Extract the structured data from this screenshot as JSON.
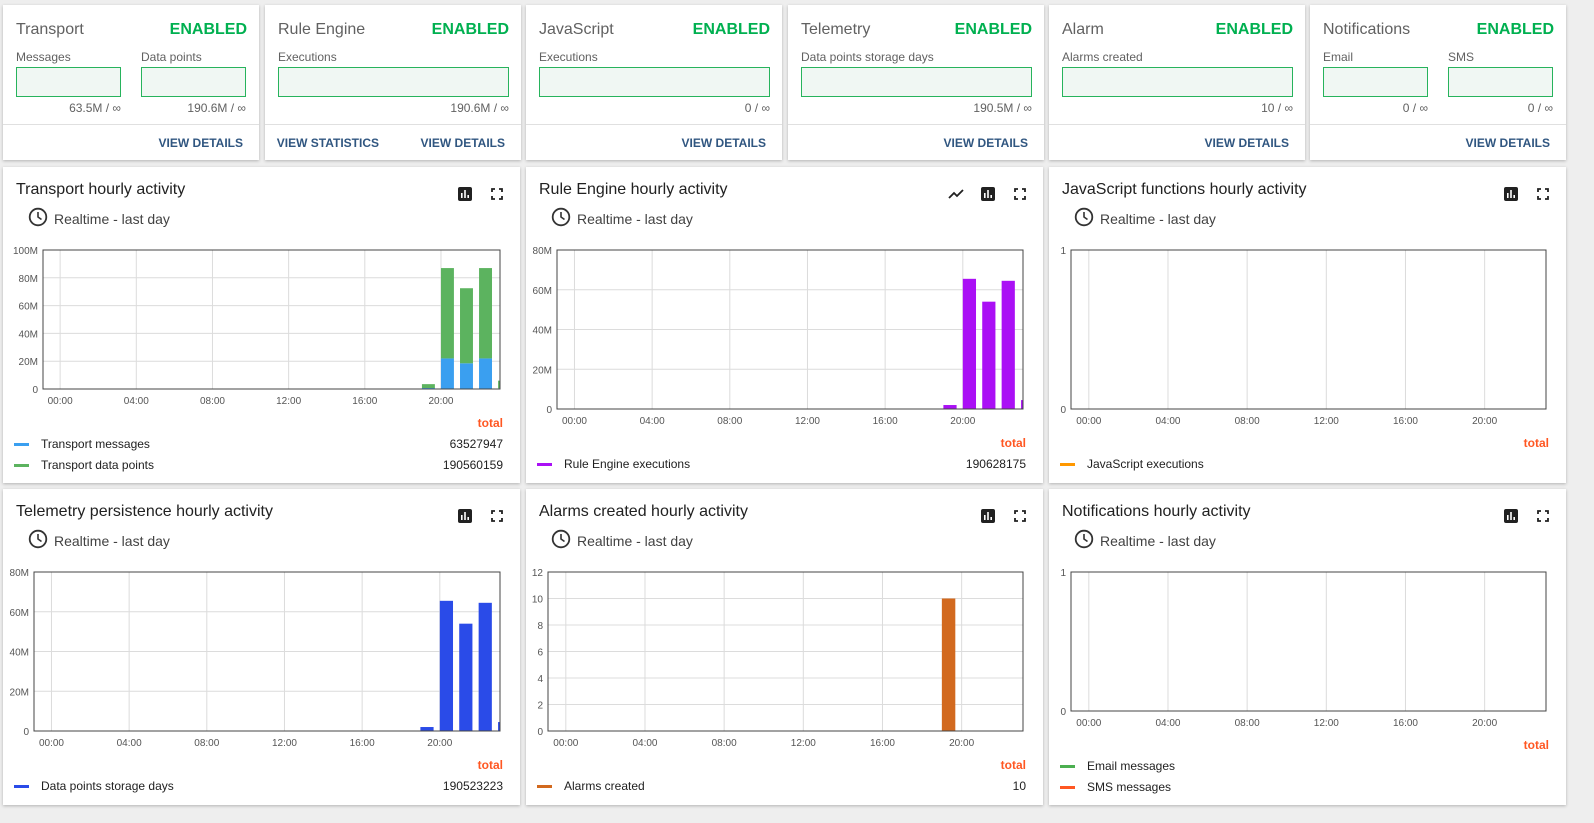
{
  "summary_cards": [
    {
      "title": "Transport",
      "status": "ENABLED",
      "metrics": [
        {
          "label": "Messages",
          "value": "63.5M / ∞",
          "fraction": 0
        },
        {
          "label": "Data points",
          "value": "190.6M / ∞",
          "fraction": 0
        }
      ],
      "buttons": [
        "VIEW DETAILS"
      ]
    },
    {
      "title": "Rule Engine",
      "status": "ENABLED",
      "metrics": [
        {
          "label": "Executions",
          "value": "190.6M / ∞",
          "fraction": 0
        }
      ],
      "buttons": [
        "VIEW STATISTICS",
        "VIEW DETAILS"
      ]
    },
    {
      "title": "JavaScript",
      "status": "ENABLED",
      "metrics": [
        {
          "label": "Executions",
          "value": "0 / ∞",
          "fraction": 0
        }
      ],
      "buttons": [
        "VIEW DETAILS"
      ]
    },
    {
      "title": "Telemetry",
      "status": "ENABLED",
      "metrics": [
        {
          "label": "Data points storage days",
          "value": "190.5M / ∞",
          "fraction": 0
        }
      ],
      "buttons": [
        "VIEW DETAILS"
      ]
    },
    {
      "title": "Alarm",
      "status": "ENABLED",
      "metrics": [
        {
          "label": "Alarms created",
          "value": "10 / ∞",
          "fraction": 0
        }
      ],
      "buttons": [
        "VIEW DETAILS"
      ]
    },
    {
      "title": "Notifications",
      "status": "ENABLED",
      "metrics": [
        {
          "label": "Email",
          "value": "0 / ∞",
          "fraction": 0
        },
        {
          "label": "SMS",
          "value": "0 / ∞",
          "fraction": 0
        }
      ],
      "buttons": [
        "VIEW DETAILS"
      ]
    }
  ],
  "colors": {
    "enabled": "#00b050",
    "total_label": "#ff5722",
    "button": "#305680"
  },
  "chart_data": [
    {
      "type": "bar",
      "stacked": true,
      "title": "Transport hourly activity",
      "timewindow": "Realtime - last day",
      "icons": [
        "bar-chart-icon",
        "fullscreen-icon"
      ],
      "xticks": [
        "00:00",
        "04:00",
        "08:00",
        "12:00",
        "16:00",
        "20:00"
      ],
      "yticks": [
        "0",
        "20M",
        "40M",
        "60M",
        "80M",
        "100M"
      ],
      "ylim": [
        0,
        100000000
      ],
      "grid": true,
      "total_label": "total",
      "x": [
        "19:00",
        "20:00",
        "21:00",
        "22:00",
        "23:00"
      ],
      "series": [
        {
          "name": "Transport messages",
          "color": "#3a9ff0",
          "total": "63527947",
          "values": [
            700000,
            22000000,
            18500000,
            22000000,
            500000
          ]
        },
        {
          "name": "Transport data points",
          "color": "#5cb35f",
          "total": "190560159",
          "values": [
            2800000,
            65000000,
            54000000,
            65000000,
            5500000
          ]
        }
      ]
    },
    {
      "type": "bar",
      "title": "Rule Engine hourly activity",
      "timewindow": "Realtime - last day",
      "icons": [
        "line-chart-icon",
        "bar-chart-icon",
        "fullscreen-icon"
      ],
      "xticks": [
        "00:00",
        "04:00",
        "08:00",
        "12:00",
        "16:00",
        "20:00"
      ],
      "yticks": [
        "0",
        "20M",
        "40M",
        "60M",
        "80M"
      ],
      "ylim": [
        0,
        80000000
      ],
      "grid": true,
      "total_label": "total",
      "x": [
        "19:00",
        "20:00",
        "21:00",
        "22:00",
        "23:00"
      ],
      "series": [
        {
          "name": "Rule Engine executions",
          "color": "#aa10f5",
          "total": "190628175",
          "values": [
            2000000,
            65500000,
            54000000,
            64500000,
            4500000
          ]
        }
      ]
    },
    {
      "type": "bar",
      "title": "JavaScript functions hourly activity",
      "timewindow": "Realtime - last day",
      "icons": [
        "bar-chart-icon",
        "fullscreen-icon"
      ],
      "xticks": [
        "00:00",
        "04:00",
        "08:00",
        "12:00",
        "16:00",
        "20:00"
      ],
      "yticks": [
        "0",
        "1"
      ],
      "ylim": [
        0,
        1
      ],
      "grid": true,
      "total_label": "total",
      "x": [],
      "series": [
        {
          "name": "JavaScript executions",
          "color": "#ff9800",
          "total": "",
          "values": []
        }
      ]
    },
    {
      "type": "bar",
      "title": "Telemetry persistence hourly activity",
      "timewindow": "Realtime - last day",
      "icons": [
        "bar-chart-icon",
        "fullscreen-icon"
      ],
      "xticks": [
        "00:00",
        "04:00",
        "08:00",
        "12:00",
        "16:00",
        "20:00"
      ],
      "yticks": [
        "0",
        "20M",
        "40M",
        "60M",
        "80M"
      ],
      "ylim": [
        0,
        80000000
      ],
      "grid": true,
      "total_label": "total",
      "x": [
        "19:00",
        "20:00",
        "21:00",
        "22:00",
        "23:00"
      ],
      "series": [
        {
          "name": "Data points storage days",
          "color": "#2a4be8",
          "total": "190523223",
          "values": [
            2000000,
            65500000,
            54000000,
            64500000,
            4500000
          ]
        }
      ]
    },
    {
      "type": "bar",
      "title": "Alarms created hourly activity",
      "timewindow": "Realtime - last day",
      "icons": [
        "bar-chart-icon",
        "fullscreen-icon"
      ],
      "xticks": [
        "00:00",
        "04:00",
        "08:00",
        "12:00",
        "16:00",
        "20:00"
      ],
      "yticks": [
        "0",
        "2",
        "4",
        "6",
        "8",
        "10",
        "12"
      ],
      "ylim": [
        0,
        12
      ],
      "grid": true,
      "total_label": "total",
      "x": [
        "19:00"
      ],
      "series": [
        {
          "name": "Alarms created",
          "color": "#d2691e",
          "total": "10",
          "values": [
            10
          ]
        }
      ]
    },
    {
      "type": "bar",
      "title": "Notifications hourly activity",
      "timewindow": "Realtime - last day",
      "icons": [
        "bar-chart-icon",
        "fullscreen-icon"
      ],
      "xticks": [
        "00:00",
        "04:00",
        "08:00",
        "12:00",
        "16:00",
        "20:00"
      ],
      "yticks": [
        "0",
        "1"
      ],
      "ylim": [
        0,
        1
      ],
      "grid": true,
      "total_label": "total",
      "x": [],
      "series": [
        {
          "name": "Email messages",
          "color": "#4caf50",
          "total": "",
          "values": []
        },
        {
          "name": "SMS messages",
          "color": "#ff5722",
          "total": "",
          "values": []
        }
      ]
    }
  ]
}
